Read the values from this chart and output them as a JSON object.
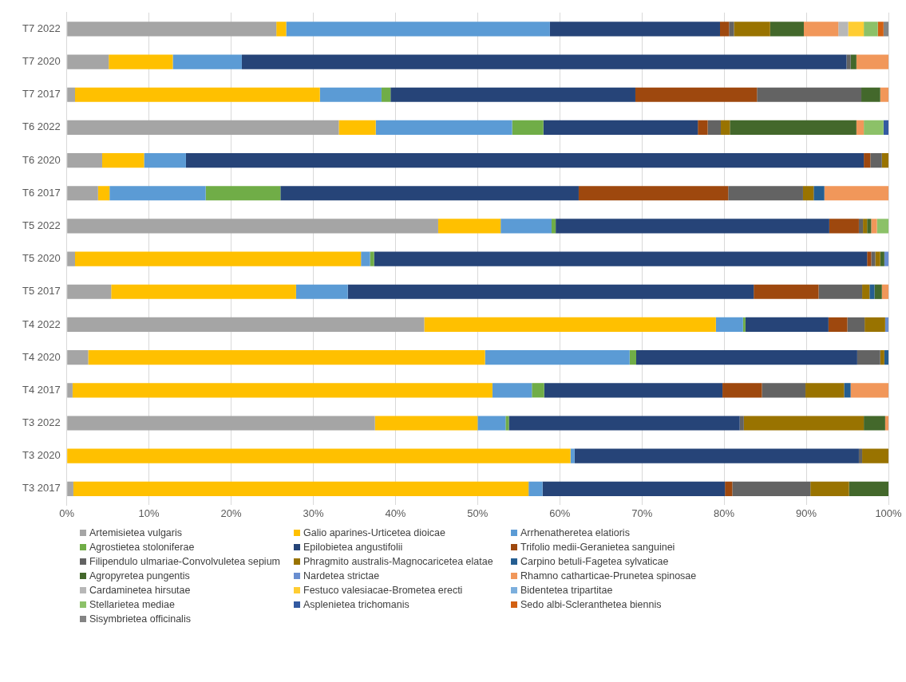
{
  "chart_data": {
    "type": "bar",
    "orientation": "horizontal",
    "stacked": true,
    "grid": "x",
    "legend": "bottom",
    "categories": [
      "T7 2022",
      "T7 2020",
      "T7 2017",
      "T6 2022",
      "T6 2020",
      "T6 2017",
      "T5 2022",
      "T5 2020",
      "T5 2017",
      "T4 2022",
      "T4 2020",
      "T4 2017",
      "T3 2022",
      "T3 2020",
      "T3 2017"
    ],
    "xlim": [
      0,
      100
    ],
    "xticks": [
      {
        "value": 0,
        "label": "0%"
      },
      {
        "value": 10,
        "label": "10%"
      },
      {
        "value": 20,
        "label": "20%"
      },
      {
        "value": 30,
        "label": "30%"
      },
      {
        "value": 40,
        "label": "40%"
      },
      {
        "value": 50,
        "label": "50%"
      },
      {
        "value": 60,
        "label": "60%"
      },
      {
        "value": 70,
        "label": "70%"
      },
      {
        "value": 80,
        "label": "80%"
      },
      {
        "value": 90,
        "label": "90%"
      },
      {
        "value": 100,
        "label": "100%"
      }
    ],
    "series": [
      {
        "name": "Artemisietea vulgaris",
        "color": "#a5a5a5",
        "values": [
          25.5,
          5.1,
          1.0,
          33.1,
          4.3,
          3.8,
          45.2,
          1.0,
          5.4,
          43.5,
          2.6,
          0.7,
          37.5,
          0,
          0.8
        ]
      },
      {
        "name": "Galio aparines-Urticetea dioicae",
        "color": "#ffc000",
        "values": [
          1.2,
          7.8,
          29.8,
          4.5,
          5.1,
          1.4,
          7.6,
          34.8,
          22.5,
          35.5,
          48.3,
          51.1,
          12.5,
          61.3,
          55.4
        ]
      },
      {
        "name": "Arrhenatheretea elatioris",
        "color": "#5b9bd5",
        "values": [
          32.1,
          8.4,
          7.5,
          16.6,
          5.1,
          11.7,
          6.2,
          1.1,
          6.3,
          3.3,
          17.6,
          4.8,
          3.4,
          0.5,
          1.7
        ]
      },
      {
        "name": "Agrostietea stoloniferae",
        "color": "#70ad47",
        "values": [
          0,
          0,
          1.1,
          3.8,
          0,
          9.1,
          0.5,
          0.5,
          0,
          0.3,
          0.8,
          1.5,
          0.4,
          0,
          0
        ]
      },
      {
        "name": "Epilobietea angustifolii",
        "color": "#264478",
        "values": [
          20.7,
          73.6,
          29.8,
          18.8,
          82.5,
          36.3,
          33.3,
          60.0,
          49.4,
          10.1,
          26.9,
          21.7,
          28.1,
          34.6,
          22.2
        ]
      },
      {
        "name": "Trifolio medii-Geranietea sanguinei",
        "color": "#9e480e",
        "values": [
          1.1,
          0,
          14.8,
          1.2,
          0.8,
          18.2,
          3.6,
          0.5,
          7.9,
          2.3,
          0,
          4.8,
          0,
          0,
          0.9
        ]
      },
      {
        "name": "Filipendulo ulmariae-Convolvuletea sepium",
        "color": "#636363",
        "values": [
          0.6,
          0.5,
          12.7,
          1.6,
          1.4,
          9.1,
          0.5,
          0.5,
          5.3,
          2.1,
          2.8,
          5.3,
          0.5,
          0.4,
          9.5
        ]
      },
      {
        "name": "Phragmito australis-Magnocaricetea elatae",
        "color": "#997300",
        "values": [
          4.4,
          0,
          0,
          1.1,
          0.8,
          1.3,
          0.5,
          0.6,
          0.9,
          2.5,
          0.5,
          4.7,
          14.6,
          3.2,
          4.7
        ]
      },
      {
        "name": "Carpino betuli-Fagetea sylvaticae",
        "color": "#255e91",
        "values": [
          0,
          0,
          0,
          0,
          0,
          1.3,
          0,
          0,
          0.6,
          0,
          0.5,
          0.8,
          0,
          0,
          0
        ]
      },
      {
        "name": "Agropyretea pungentis",
        "color": "#43682b",
        "values": [
          4.1,
          0.7,
          2.3,
          15.4,
          0,
          0,
          0.5,
          0.5,
          0.9,
          0,
          0,
          0,
          2.6,
          0,
          4.8
        ]
      },
      {
        "name": "Nardetea strictae",
        "color": "#698ed0",
        "values": [
          0,
          0,
          0,
          0,
          0,
          0,
          0,
          0.5,
          0,
          0.4,
          0,
          0,
          0,
          0,
          0
        ]
      },
      {
        "name": "Rhamno catharticae-Prunetea spinosae",
        "color": "#f1975a",
        "values": [
          4.2,
          3.9,
          1.0,
          0.9,
          0,
          7.8,
          0.7,
          0,
          0.8,
          0,
          0,
          4.6,
          0.4,
          0,
          0
        ]
      },
      {
        "name": "Cardaminetea hirsutae",
        "color": "#b7b7b7",
        "values": [
          1.2,
          0,
          0,
          0,
          0,
          0,
          0,
          0,
          0,
          0,
          0,
          0,
          0,
          0,
          0
        ]
      },
      {
        "name": "Festuco valesiacae-Brometea erecti",
        "color": "#ffcd33",
        "values": [
          1.9,
          0,
          0,
          0,
          0,
          0,
          0,
          0,
          0,
          0,
          0,
          0,
          0,
          0,
          0
        ]
      },
      {
        "name": "Bidentetea tripartitae",
        "color": "#7cafdd",
        "values": [
          0,
          0,
          0,
          0,
          0,
          0,
          0,
          0,
          0,
          0,
          0,
          0,
          0,
          0,
          0
        ]
      },
      {
        "name": "Stellarietea mediae",
        "color": "#8cc168",
        "values": [
          1.7,
          0,
          0,
          2.4,
          0,
          0,
          1.4,
          0,
          0,
          0,
          0,
          0,
          0,
          0,
          0
        ]
      },
      {
        "name": "Asplenietea trichomanis",
        "color": "#335aa1",
        "values": [
          0,
          0,
          0,
          0.6,
          0,
          0,
          0,
          0,
          0,
          0,
          0,
          0,
          0,
          0,
          0
        ]
      },
      {
        "name": "Sedo albi-Scleranthetea biennis",
        "color": "#d26012",
        "values": [
          0.7,
          0,
          0,
          0,
          0,
          0,
          0,
          0,
          0,
          0,
          0,
          0,
          0,
          0,
          0
        ]
      },
      {
        "name": "Sisymbrietea officinalis",
        "color": "#848484",
        "values": [
          0.6,
          0,
          0,
          0,
          0,
          0,
          0,
          0,
          0,
          0,
          0,
          0,
          0,
          0,
          0
        ]
      }
    ]
  }
}
